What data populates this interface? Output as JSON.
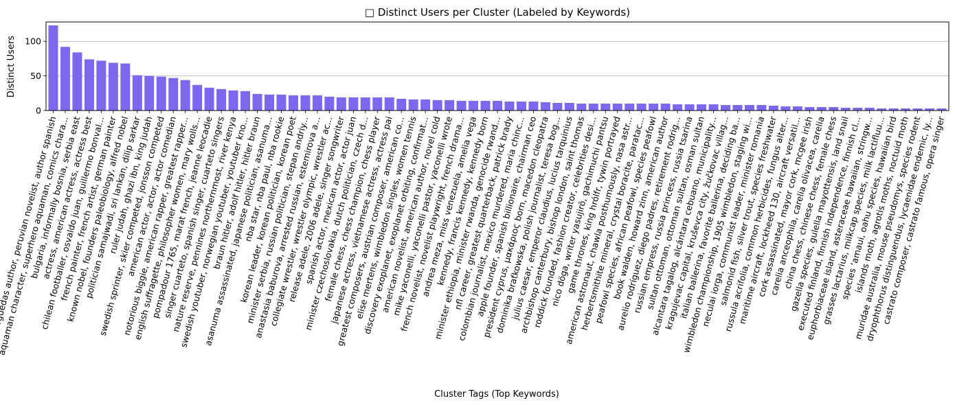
{
  "chart_data": {
    "type": "bar",
    "title": "□ Distinct Users per Cluster (Labeled by Keywords)",
    "xlabel": "Cluster Tags (Top Keywords)",
    "ylabel": "Distinct Users",
    "ylim": [
      0,
      128
    ],
    "yticks": [
      0,
      50,
      100
    ],
    "grid": "horizontal",
    "bar_color": "#7b68ee",
    "categories": [
      "arguedas author, peruvian novelist, author spanish",
      "aquaman character, superhero aquaman, comics chara...",
      "bulgaria, informally bosnia, serbia east",
      "actress, american actress, actress best",
      "chilean footballer, osvaldo juan, guillermo bonval...",
      "french painter, french artist, german painter",
      "known nobel, founders paleobiology, alfred nobel",
      "politician samajwadi, sri lankan, dilip sarkar",
      "ruler judah, ghazi ibn, king judah",
      "swedish sprinter, skier competed, jonsson competed",
      "american actor, actor, actor comedian",
      "notorious biggie, american rapper, greatest rapper...",
      "english suffragette, philosopher women, mary wolls...",
      "pompadour 1765, marat french, jeanne leocadie",
      "singer cuarteto, spanish singer, cuarteto singers",
      "nature reserve, pennines northernmost, river kenya",
      "swedish youtuber, norwegian youtuber, youtuber kno...",
      "braun hitler, adolf hitler, hitler braun",
      "asanuma assassinated, japanese politician, asanuma...",
      "nba star, nba paul, nba rookie",
      "korean leader, korean politician, korean poet",
      "minister serbia, russian politician, stepan andriy...",
      "anastasia baburova, arrested russian, estemirova a...",
      "collegiate wrestler, wrestler olympic, wrestler ac...",
      "release adele, 2006 adele, singer songwriter",
      "spanish actor, mexican actor, actor juan",
      "minister czechoslovakia, dutch politician, czech d...",
      "female chess, chess champion, chess player",
      "japanese actress, vietnamese actress, actress pai",
      "greatest composers, austrian composer, american co...",
      "elise mertens, wimbledon singles, women tennis",
      "discovery exoplanet, exoplanet orbiting, confirmat...",
      "american novelist, american author, novel cold",
      "mike yaconelli, yaconelli pastor, yaconelli wrote",
      "french novelist, novelist playwright, french drama...",
      "andrea meza, miss venezuela, amelia vega",
      "kennedy, francis kennedy, kennedy born",
      "minister ethiopia, minister rwanda, genocide rwand...",
      "nfl career, greatest quarterback, patrick brady",
      "colombian journalist, mexico murdered, maria chinc...",
      "apple founder, spanish billionaire, chairman ceo",
      "president cyprus, μακάριος born, macedon cleopatra",
      "dominika braťkowska, polish journalist, teresa bog...",
      "julius caesar, emperor claudius, lucius tarquinius",
      "archbishop canterbury, bishop london, saint thomas",
      "roddick founded, fashion creator, celebrities desi...",
      "nico döga, writer yasujirō, gachimuchi pantsu",
      "game thrones, king hrólfr, tywin portrayed",
      "american astronaut, chawla posthumously, nasa astr...",
      "herbertsmithite mineral, crystal boracite, paratac...",
      "peafowl species, african peafowl, species peafowl",
      "book walden, howard zinn, american author",
      "aurelio rodríguez, diego padres, retirement rodrig...",
      "russian empress, russia princess, russia tsarina",
      "sultan ottoman, ottoman sultan, osman sultan",
      "alcantara tagalog, alcántara cebuano, municipality...",
      "kragujevac capital, kruševca city, žučkovac villag...",
      "italian ballerina, favorite ballerina, deciding ba...",
      "wimbledon championship, 1905 wimbledon, staging wi...",
      "neculai iorga, communist leader, minister romania",
      "salmonid fish, silver trout, species freshwater",
      "russula acrifolia, common herbicides, fungus alter...",
      "maritime aircraft, lockheed 130, aircraft versatil...",
      "cork assassinated, mayor cork, mcgee irish",
      "carelia anceophila, carelia olivacea, carelia",
      "china chess, chinese chess, female chess",
      "gazella species, gulella mayottensis, land snail",
      "executed finland, finnish independence, finnish cl...",
      "euphorbiaceae island, asteraceae hawaiian, stringw...",
      "grasses lactarius, milkcap species, milk lactifluu...",
      "species ʻamaui, oahu species, hawaiian bird",
      "islands moth, agrotis moths, noctuid moth",
      "muridae australia, mouse pseudomys, species rodent",
      "dryophthorus distinguendus, lycaenidae endemic, ly...",
      "castrato composer, castrato famous, opera singer"
    ],
    "values": [
      123,
      92,
      84,
      74,
      72,
      69,
      68,
      51,
      50,
      49,
      47,
      44,
      37,
      33,
      31,
      29,
      28,
      24,
      23,
      23,
      22,
      22,
      22,
      20,
      19,
      19,
      19,
      19,
      19,
      17,
      16,
      16,
      15,
      15,
      14,
      14,
      14,
      14,
      13,
      13,
      13,
      12,
      11,
      11,
      10,
      10,
      10,
      10,
      10,
      10,
      10,
      10,
      9,
      9,
      9,
      9,
      8,
      8,
      8,
      8,
      7,
      6,
      6,
      5,
      5,
      5,
      4,
      4,
      4,
      3,
      3,
      3,
      3,
      3,
      3
    ]
  }
}
